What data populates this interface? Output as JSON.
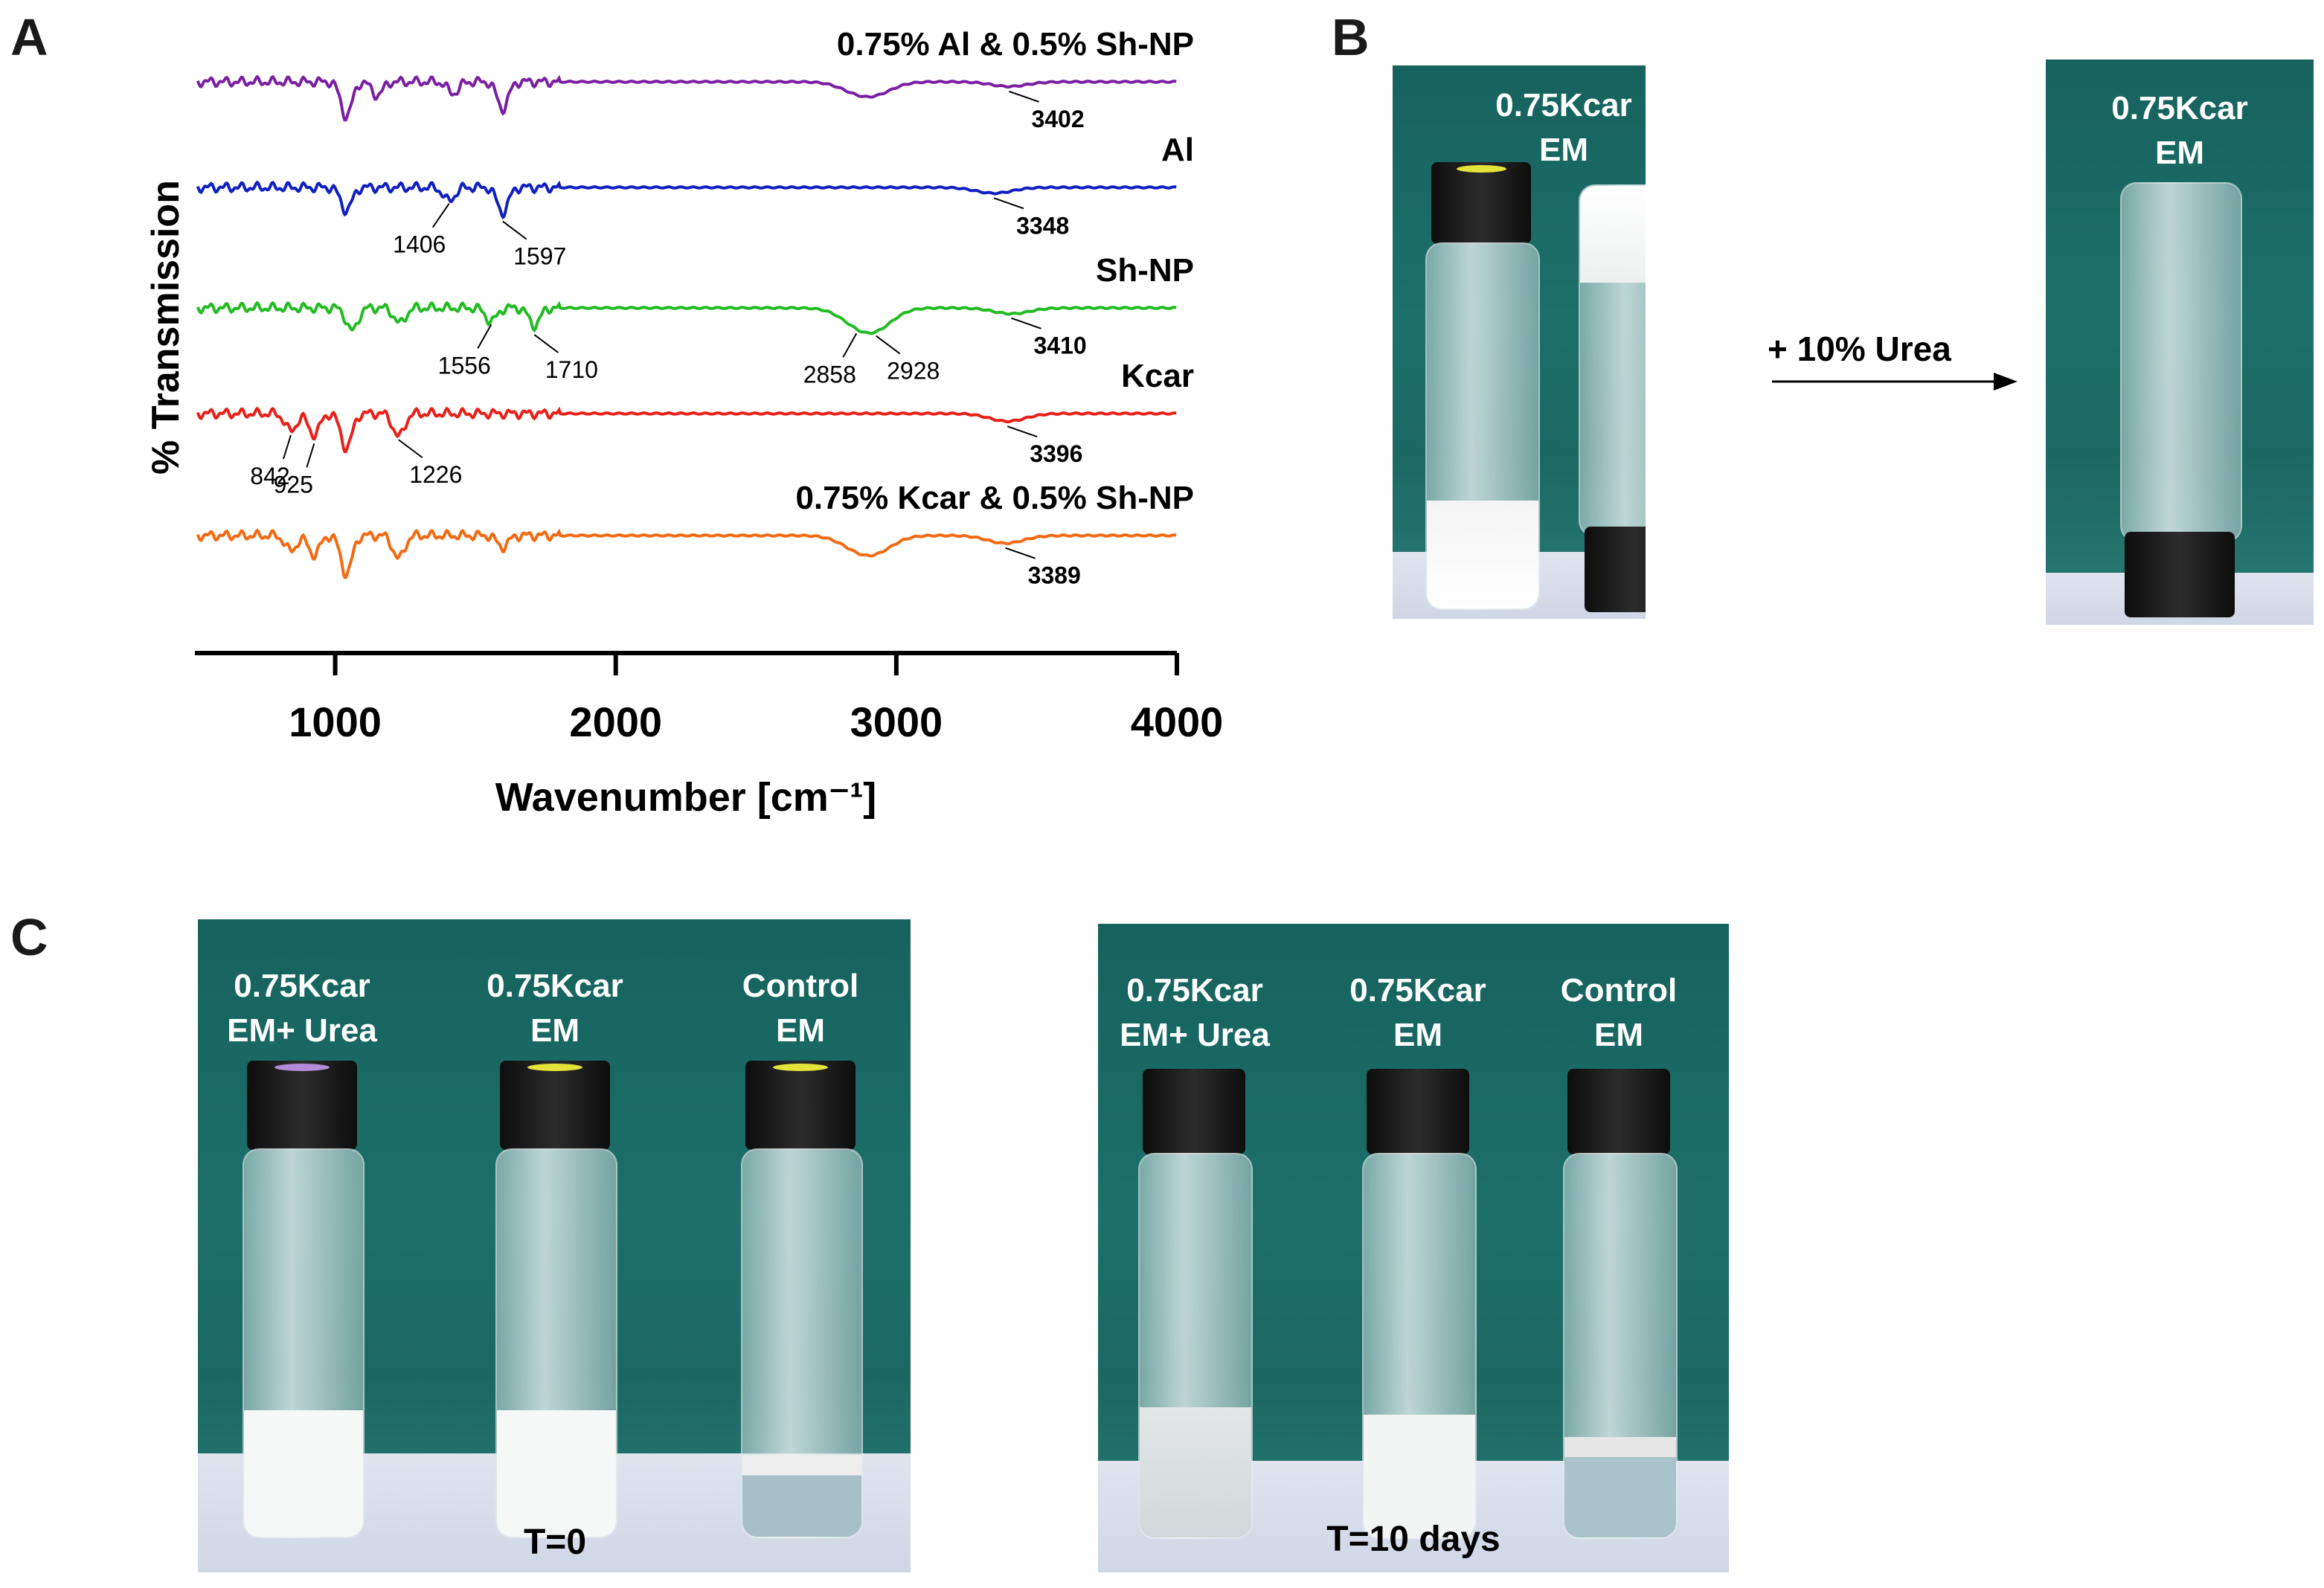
{
  "panels": {
    "a": "A",
    "b": "B",
    "c": "C"
  },
  "chart_data": {
    "type": "line",
    "title": "",
    "xlabel": "Wavenumber [cm⁻¹]",
    "ylabel": "% Transmission",
    "xlim": [
      500,
      4000
    ],
    "xticks": [
      "1000",
      "2000",
      "3000",
      "4000"
    ],
    "xtick_values": [
      1000,
      2000,
      3000,
      4000
    ],
    "series": [
      {
        "name": "0.75% Al & 0.5% Sh-NP",
        "color": "#7b1fa2",
        "peaks": [
          [
            1040,
            0.9
          ],
          [
            1150,
            0.35
          ],
          [
            1420,
            0.3
          ],
          [
            1597,
            0.7
          ],
          [
            2858,
            0.2
          ],
          [
            2928,
            0.25
          ],
          [
            3402,
            0.12
          ]
        ],
        "annotations": [
          {
            "label": "3402",
            "x": 3402
          }
        ]
      },
      {
        "name": "Al",
        "color": "#1020c0",
        "peaks": [
          [
            1040,
            0.6
          ],
          [
            1406,
            0.35
          ],
          [
            1597,
            0.65
          ],
          [
            3348,
            0.15
          ]
        ],
        "annotations": [
          {
            "label": "1406",
            "x": 1406
          },
          {
            "label": "1597",
            "x": 1597
          },
          {
            "label": "3348",
            "x": 3348
          }
        ]
      },
      {
        "name": "Sh-NP",
        "color": "#22bb22",
        "peaks": [
          [
            1060,
            0.6
          ],
          [
            1230,
            0.4
          ],
          [
            1556,
            0.35
          ],
          [
            1710,
            0.45
          ],
          [
            2858,
            0.3
          ],
          [
            2928,
            0.45
          ],
          [
            3410,
            0.15
          ]
        ],
        "annotations": [
          {
            "label": "1556",
            "x": 1556
          },
          {
            "label": "1710",
            "x": 1710
          },
          {
            "label": "2858",
            "x": 2858
          },
          {
            "label": "2928",
            "x": 2928
          },
          {
            "label": "3410",
            "x": 3410
          }
        ]
      },
      {
        "name": "Kcar",
        "color": "#e8201a",
        "peaks": [
          [
            842,
            0.45
          ],
          [
            925,
            0.55
          ],
          [
            1040,
            0.9
          ],
          [
            1226,
            0.6
          ],
          [
            3396,
            0.2
          ]
        ],
        "annotations": [
          {
            "label": "842",
            "x": 842
          },
          {
            "label": "925",
            "x": 925
          },
          {
            "label": "1226",
            "x": 1226
          },
          {
            "label": "3396",
            "x": 3396
          }
        ]
      },
      {
        "name": "0.75% Kcar & 0.5% Sh-NP",
        "color": "#f26a12",
        "peaks": [
          [
            842,
            0.4
          ],
          [
            925,
            0.5
          ],
          [
            1040,
            1.0
          ],
          [
            1226,
            0.6
          ],
          [
            1597,
            0.3
          ],
          [
            2858,
            0.25
          ],
          [
            2928,
            0.35
          ],
          [
            3389,
            0.2
          ]
        ],
        "annotations": [
          {
            "label": "3389",
            "x": 3389
          }
        ]
      }
    ]
  },
  "panel_b": {
    "before_label": "0.75Kcar\nEM",
    "arrow_label": "+ 10% Urea",
    "after_label": "0.75Kcar\nEM"
  },
  "panel_c": {
    "left": {
      "time": "T=0",
      "vials": [
        "0.75Kcar\nEM+ Urea",
        "0.75Kcar\nEM",
        "Control\nEM"
      ]
    },
    "right": {
      "time": "T=10 days",
      "vials": [
        "0.75Kcar\nEM+ Urea",
        "0.75Kcar\nEM",
        "Control\nEM"
      ]
    }
  },
  "colors": {
    "teal": "#1c6661",
    "cap": "#111111"
  }
}
